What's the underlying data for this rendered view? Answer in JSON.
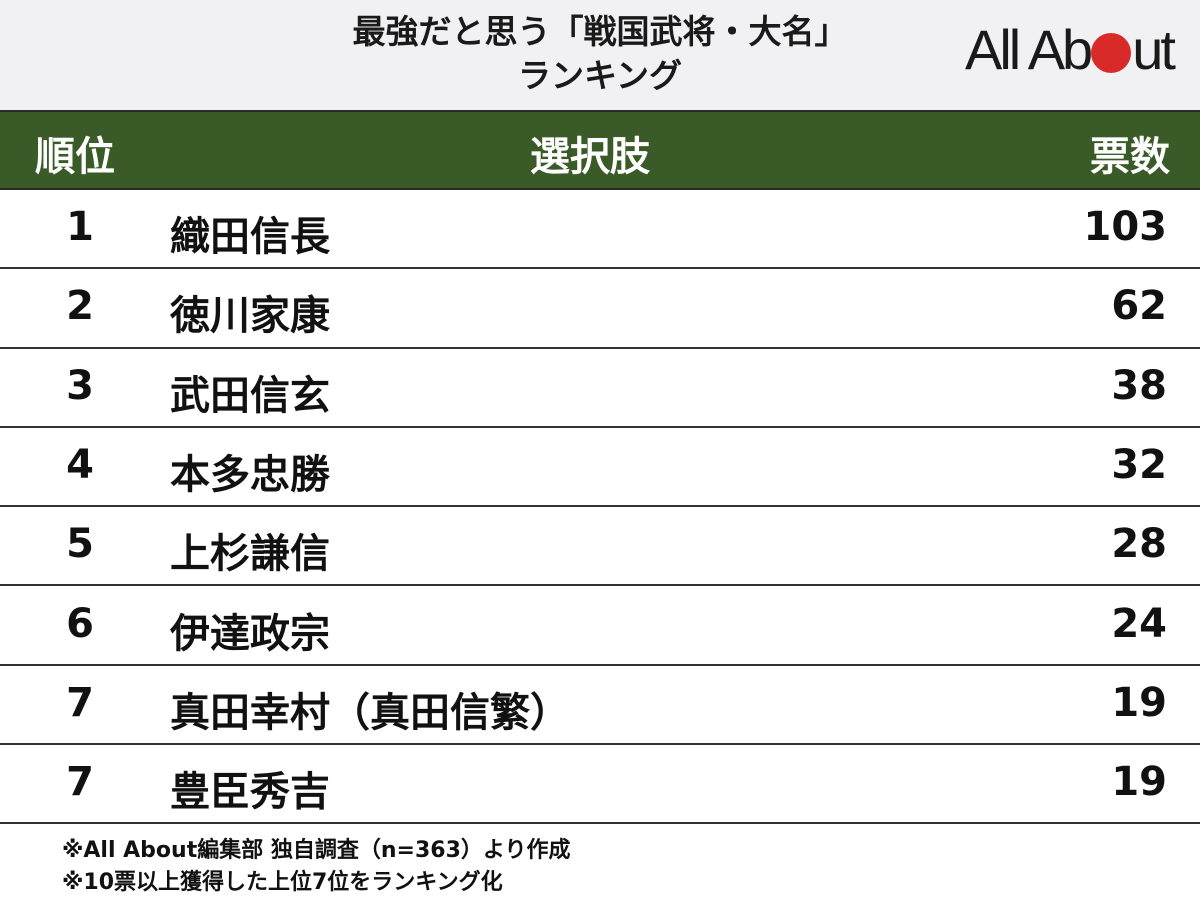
{
  "title_lines": [
    "最強だと思う「戦国武将・大名」",
    "ランキング"
  ],
  "logo": "All About",
  "colors": {
    "header_bg": "#3a5a27",
    "top_bg": "#f1f1f3",
    "logo_dot": "#d92a2a"
  },
  "chart_data": {
    "type": "table",
    "title": "最強だと思う「戦国武将・大名」ランキング",
    "columns": [
      "順位",
      "選択肢",
      "票数"
    ],
    "rows": [
      {
        "rank": "1",
        "name": "織田信長",
        "votes": "103"
      },
      {
        "rank": "2",
        "name": "徳川家康",
        "votes": "62"
      },
      {
        "rank": "3",
        "name": "武田信玄",
        "votes": "38"
      },
      {
        "rank": "4",
        "name": "本多忠勝",
        "votes": "32"
      },
      {
        "rank": "5",
        "name": "上杉謙信",
        "votes": "28"
      },
      {
        "rank": "6",
        "name": "伊達政宗",
        "votes": "24"
      },
      {
        "rank": "7",
        "name": "真田幸村（真田信繁）",
        "votes": "19"
      },
      {
        "rank": "7",
        "name": "豊臣秀吉",
        "votes": "19"
      }
    ]
  },
  "footnotes": [
    "※All About編集部 独自調査（n=363）より作成",
    "※10票以上獲得した上位7位をランキング化"
  ]
}
